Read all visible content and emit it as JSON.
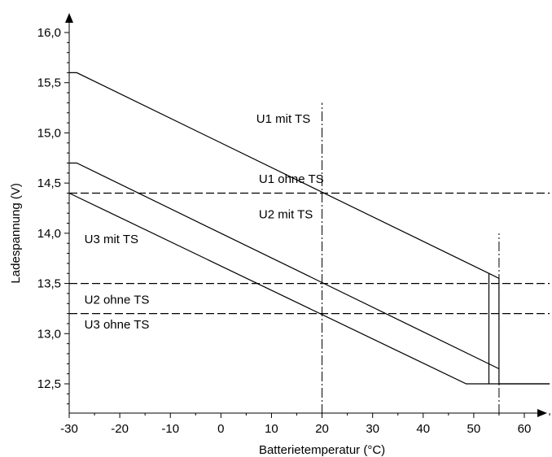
{
  "chart_data": {
    "type": "line",
    "xlabel": "Batterietemperatur (°C)",
    "ylabel": "Ladespannung (V)",
    "xlim": [
      -30,
      65
    ],
    "ylim": [
      12.2,
      16.2
    ],
    "x_ticks": [
      {
        "value": -30,
        "label": "-30"
      },
      {
        "value": -20,
        "label": "-20"
      },
      {
        "value": -10,
        "label": "-10"
      },
      {
        "value": 0,
        "label": "0"
      },
      {
        "value": 10,
        "label": "10"
      },
      {
        "value": 20,
        "label": "20"
      },
      {
        "value": 30,
        "label": "30"
      },
      {
        "value": 40,
        "label": "40"
      },
      {
        "value": 50,
        "label": "50"
      },
      {
        "value": 60,
        "label": "60"
      }
    ],
    "y_ticks": [
      {
        "value": 12.5,
        "label": "12,5"
      },
      {
        "value": 13.0,
        "label": "13,0"
      },
      {
        "value": 13.5,
        "label": "13,5"
      },
      {
        "value": 14.0,
        "label": "14,0"
      },
      {
        "value": 14.5,
        "label": "14,5"
      },
      {
        "value": 15.0,
        "label": "15,0"
      },
      {
        "value": 15.5,
        "label": "15,5"
      },
      {
        "value": 16.0,
        "label": "16,0"
      }
    ],
    "grid": false,
    "series": [
      {
        "name": "U1 mit TS",
        "style": "solid",
        "x": [
          -30,
          -28.5,
          53,
          55,
          55,
          65
        ],
        "y": [
          15.6,
          15.6,
          13.6,
          13.55,
          12.5,
          12.5
        ]
      },
      {
        "name": "U2 mit TS",
        "style": "solid",
        "x": [
          -30,
          -28.5,
          55
        ],
        "y": [
          14.7,
          14.7,
          12.65
        ]
      },
      {
        "name": "U3 mit TS",
        "style": "solid",
        "x": [
          -30,
          48.5,
          65
        ],
        "y": [
          14.4,
          12.5,
          12.5
        ]
      },
      {
        "name": "U1 ohne TS",
        "style": "dashed",
        "x": [
          -30,
          65
        ],
        "y": [
          14.4,
          14.4
        ]
      },
      {
        "name": "U2 ohne TS",
        "style": "dashed",
        "x": [
          -30,
          65
        ],
        "y": [
          13.5,
          13.5
        ]
      },
      {
        "name": "U3 ohne TS",
        "style": "dashed",
        "x": [
          -30,
          65
        ],
        "y": [
          13.2,
          13.2
        ]
      }
    ],
    "cutoff_segment": {
      "x": 53,
      "y": [
        13.6,
        12.5
      ]
    },
    "reference_lines": [
      {
        "x": 20,
        "y": [
          12.2,
          15.3
        ],
        "style": "dash-dot"
      },
      {
        "x": 55,
        "y": [
          12.2,
          14.0
        ],
        "style": "dash-dot"
      }
    ],
    "series_labels": [
      {
        "text": "U1 mit TS",
        "x": 7,
        "y": 15.1
      },
      {
        "text": "U1 ohne TS",
        "x": 7.5,
        "y": 14.5
      },
      {
        "text": "U2 mit TS",
        "x": 7.5,
        "y": 14.15
      },
      {
        "text": "U3 mit TS",
        "x": -27,
        "y": 13.9
      },
      {
        "text": "U2 ohne TS",
        "x": -27,
        "y": 13.3
      },
      {
        "text": "U3 ohne TS",
        "x": -27,
        "y": 13.05
      }
    ]
  }
}
